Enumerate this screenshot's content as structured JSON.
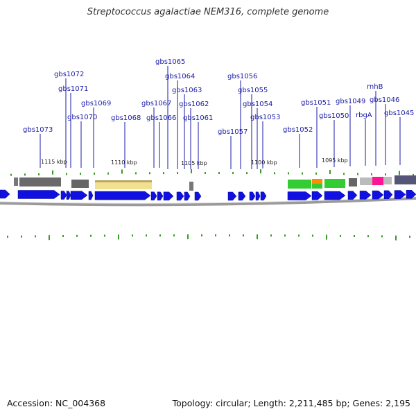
{
  "title": "Streptococcus agalactiae NEM316, complete genome",
  "footer": {
    "accession": "Accession: NC_004368",
    "summary": "Topology: circular; Length: 2,211,485 bp; Genes: 2,195"
  },
  "colors": {
    "gene_label": "#1a1aa8",
    "cds_arrow": "#1010e0",
    "tick": "#3a9a2a",
    "backbone": "#9a9a9a"
  },
  "kbp_labels": [
    "1115 kbp",
    "1110 kbp",
    "1105 kbp",
    "1100 kbp",
    "1095 kbp"
  ],
  "genes": [
    "gbs1073",
    "gbs1072",
    "gbs1071",
    "gbs1070",
    "gbs1069",
    "gbs1068",
    "gbs1067",
    "gbs1066",
    "gbs1065",
    "gbs1064",
    "gbs1063",
    "gbs1062",
    "gbs1061",
    "gbs1057",
    "gbs1056",
    "gbs1055",
    "gbs1054",
    "gbs1053",
    "gbs1052",
    "gbs1051",
    "gbs1050",
    "gbs1049",
    "rbgA",
    "rnhB",
    "gbs1046",
    "gbs1045"
  ]
}
